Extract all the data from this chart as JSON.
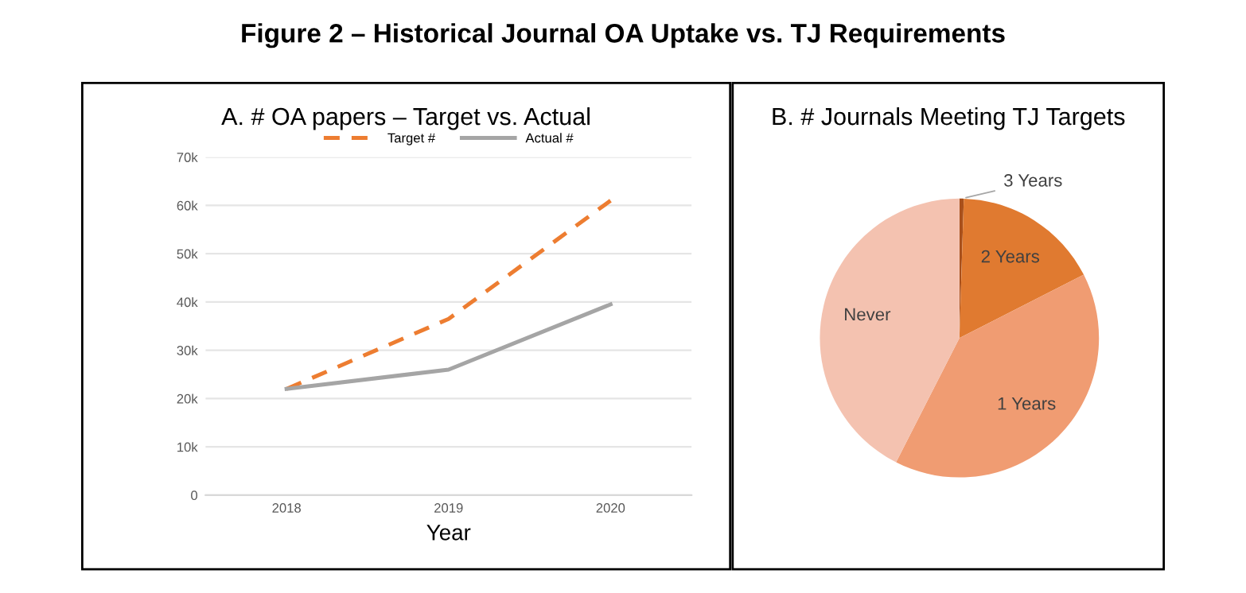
{
  "chart_data": [
    {
      "type": "line",
      "title": "A. # OA papers – Target vs. Actual",
      "xlabel": "Year",
      "annotations": [
        "Figure 2 – Historical Journal OA Uptake vs. TJ Requirements"
      ],
      "categories": [
        "2018",
        "2019",
        "2020"
      ],
      "series": [
        {
          "name": "Target #",
          "color": "#ed7d31",
          "values": [
            22000,
            36500,
            61000
          ],
          "line_style": "dashed"
        },
        {
          "name": "Actual #",
          "color": "#a5a5a5",
          "values": [
            22000,
            26000,
            39500
          ],
          "line_style": "solid"
        }
      ],
      "ylim": [
        0,
        70000
      ],
      "yticks": [
        {
          "value": 0,
          "label": "0"
        },
        {
          "value": 10000,
          "label": "10k"
        },
        {
          "value": 20000,
          "label": "20k"
        },
        {
          "value": 30000,
          "label": "30k"
        },
        {
          "value": 40000,
          "label": "40k"
        },
        {
          "value": 50000,
          "label": "50k"
        },
        {
          "value": 60000,
          "label": "60k"
        },
        {
          "value": 70000,
          "label": "70k"
        }
      ],
      "grid": "y",
      "legend": "top"
    },
    {
      "type": "pie",
      "title": "B. # Journals Meeting TJ Targets",
      "categories": [
        "3 Years",
        "2 Years",
        "1 Years",
        "Never"
      ],
      "values": [
        0.5,
        17,
        40,
        42.5
      ],
      "colors": [
        "#a9501b",
        "#e07a30",
        "#f09c72",
        "#f4c2b0"
      ]
    }
  ]
}
